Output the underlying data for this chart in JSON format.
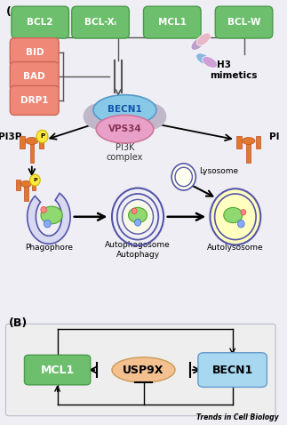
{
  "background_color": "#eeeef4",
  "green_box_color": "#6dbf6d",
  "salmon_box_color": "#f08878",
  "bcl_labels": [
    "BCL2",
    "BCL-Xₗ",
    "MCL1",
    "BCL-W"
  ],
  "bid_labels": [
    "BID",
    "BAD",
    "DRP1"
  ],
  "pi3k_label": "PI3K\ncomplex",
  "pi3p_label": "PI3P",
  "pi_label": "PI",
  "bh3_label": "BH3\nmimetics",
  "phagophore_label": "Phagophore",
  "autophagosome_label": "Autophagosome\nAutophagy",
  "autolysosome_label": "Autolysosome",
  "lysosome_label": "Lysosome",
  "becn1_color": "#89C9E8",
  "vps34_color": "#E8A0C8",
  "grey_blob_color": "#C0B8C8",
  "usp9x_color": "#F4C090",
  "trends_text": "Trends in Cell Biology"
}
